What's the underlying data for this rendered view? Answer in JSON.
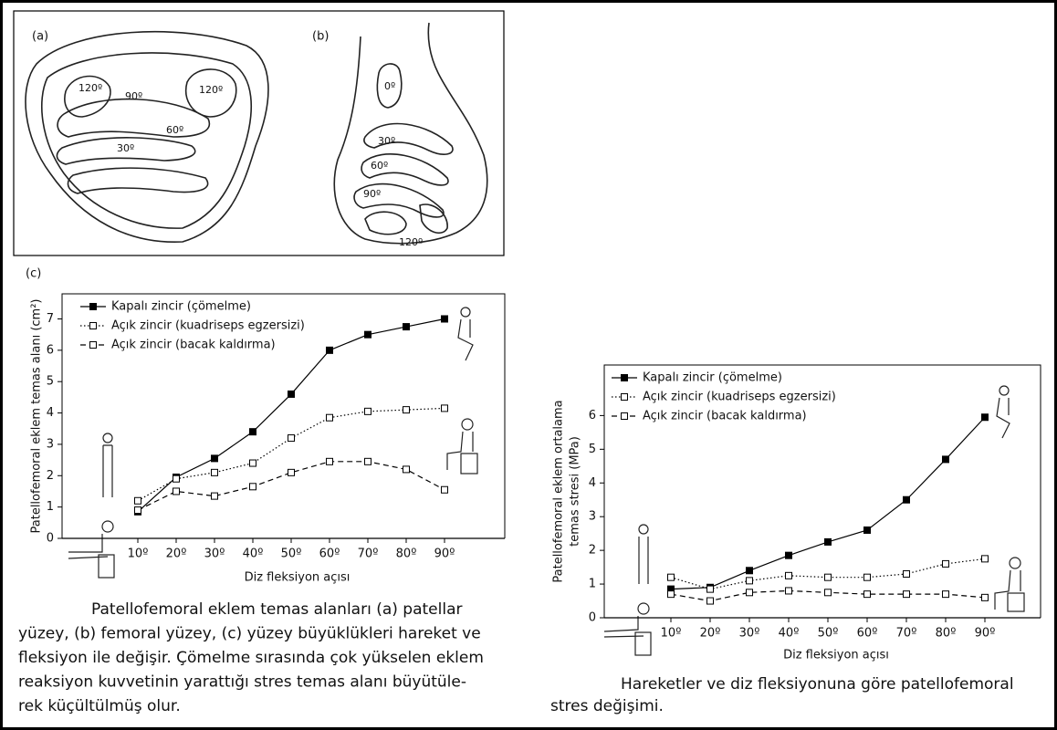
{
  "panels": {
    "a": {
      "label": "(a)",
      "regions": [
        "120º",
        "90º",
        "60º",
        "30º",
        "120º"
      ]
    },
    "b": {
      "label": "(b)",
      "regions": [
        "0º",
        "30º",
        "60º",
        "90º",
        "120º"
      ]
    },
    "c": {
      "label": "(c)"
    }
  },
  "chart_data": [
    {
      "type": "line",
      "ylabel": [
        "Patellofemoral eklem temas alanı (cm²)"
      ],
      "xlabel": "Diz fleksiyon açısı",
      "categories": [
        "10º",
        "20º",
        "30º",
        "40º",
        "50º",
        "60º",
        "70º",
        "80º",
        "90º"
      ],
      "ylim": [
        0,
        7.8
      ],
      "yticks": [
        0,
        1,
        2,
        3,
        4,
        5,
        6,
        7
      ],
      "legend": "upper left",
      "series": [
        {
          "name": "Kapalı zincir (çömelme)",
          "color": "#000000",
          "style": "solid",
          "marker": "filled",
          "values": [
            0.85,
            1.95,
            2.55,
            3.4,
            4.6,
            6.0,
            6.5,
            6.75,
            7.0
          ]
        },
        {
          "name": "Açık zincir (kuadriseps egzersizi)",
          "color": "#000000",
          "style": "dotted",
          "marker": "open",
          "values": [
            1.2,
            1.9,
            2.1,
            2.4,
            3.2,
            3.85,
            4.05,
            4.1,
            4.15
          ]
        },
        {
          "name": "Açık zincir (bacak kaldırma)",
          "color": "#000000",
          "style": "dashed",
          "marker": "open",
          "values": [
            0.9,
            1.5,
            1.35,
            1.65,
            2.1,
            2.45,
            2.45,
            2.2,
            1.55
          ]
        }
      ]
    },
    {
      "type": "line",
      "ylabel": [
        "Patellofemoral eklem ortalama",
        "temas stresi (MPa)"
      ],
      "xlabel": "Diz fleksiyon açısı",
      "categories": [
        "10º",
        "20º",
        "30º",
        "40º",
        "50º",
        "60º",
        "70º",
        "80º",
        "90º"
      ],
      "ylim": [
        0,
        7.5
      ],
      "yticks": [
        0,
        1,
        2,
        3,
        4,
        5,
        6
      ],
      "legend": "upper left",
      "series": [
        {
          "name": "Kapalı zincir (çömelme)",
          "color": "#000000",
          "style": "solid",
          "marker": "filled",
          "values": [
            0.85,
            0.9,
            1.4,
            1.85,
            2.25,
            2.6,
            3.5,
            4.7,
            5.95
          ]
        },
        {
          "name": "Açık zincir (kuadriseps egzersizi)",
          "color": "#000000",
          "style": "dotted",
          "marker": "open",
          "values": [
            1.2,
            0.85,
            1.1,
            1.25,
            1.2,
            1.2,
            1.3,
            1.6,
            1.75
          ]
        },
        {
          "name": "Açık zincir (bacak kaldırma)",
          "color": "#000000",
          "style": "dashed",
          "marker": "open",
          "values": [
            0.7,
            0.5,
            0.75,
            0.8,
            0.75,
            0.7,
            0.7,
            0.7,
            0.6
          ]
        }
      ]
    }
  ],
  "captions": {
    "left": [
      "Patellofemoral eklem temas alanları (a) patellar",
      "yüzey, (b) femoral yüzey, (c) yüzey büyüklükleri hareket ve",
      "fleksiyon ile değişir. Çömelme sırasında çok yükselen eklem",
      "reaksiyon kuvvetinin yarattığı stres temas alanı büyütüle-",
      "rek küçültülmüş olur."
    ],
    "right": [
      "Hareketler ve diz fleksiyonuna göre patellofemoral",
      "stres değişimi."
    ]
  }
}
